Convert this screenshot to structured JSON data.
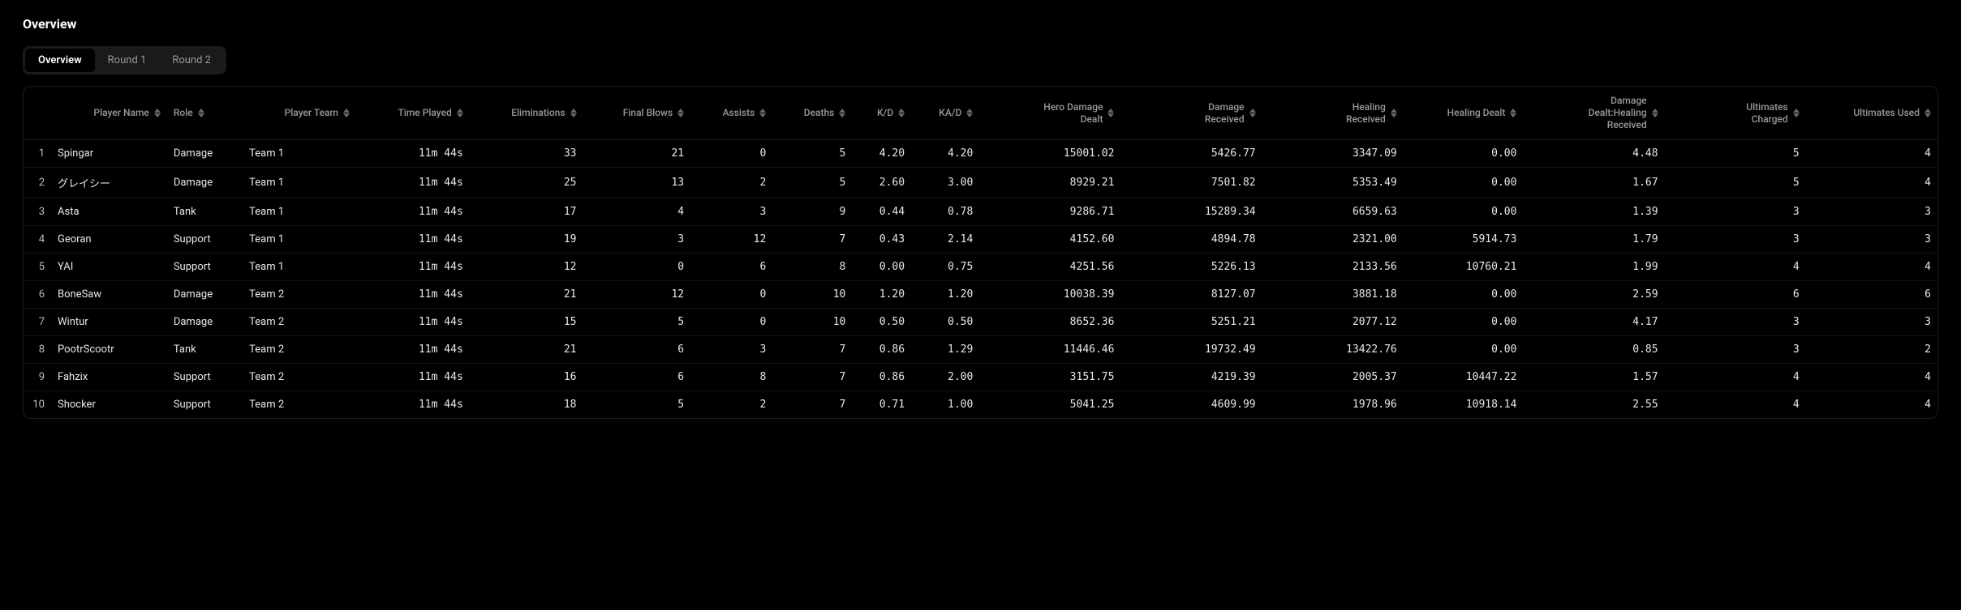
{
  "title": "Overview",
  "tabs": [
    {
      "label": "Overview",
      "active": true
    },
    {
      "label": "Round 1",
      "active": false
    },
    {
      "label": "Round 2",
      "active": false
    }
  ],
  "columns": [
    {
      "key": "idx",
      "label": "",
      "align": "right",
      "mono": false,
      "sortable": false
    },
    {
      "key": "player_name",
      "label": "Player Name",
      "align": "right",
      "mono": false,
      "sortable": true
    },
    {
      "key": "role",
      "label": "Role",
      "align": "left",
      "mono": false,
      "sortable": true
    },
    {
      "key": "player_team",
      "label": "Player Team",
      "align": "right",
      "mono": false,
      "sortable": true
    },
    {
      "key": "time_played",
      "label": "Time Played",
      "align": "right",
      "mono": true,
      "sortable": true
    },
    {
      "key": "eliminations",
      "label": "Eliminations",
      "align": "right",
      "mono": true,
      "sortable": true
    },
    {
      "key": "final_blows",
      "label": "Final Blows",
      "align": "right",
      "mono": true,
      "sortable": true
    },
    {
      "key": "assists",
      "label": "Assists",
      "align": "right",
      "mono": true,
      "sortable": true
    },
    {
      "key": "deaths",
      "label": "Deaths",
      "align": "right",
      "mono": true,
      "sortable": true
    },
    {
      "key": "kd",
      "label": "K/D",
      "align": "right",
      "mono": true,
      "sortable": true
    },
    {
      "key": "kad",
      "label": "KA/D",
      "align": "right",
      "mono": true,
      "sortable": true
    },
    {
      "key": "hero_damage",
      "label": "Hero Damage Dealt",
      "align": "right",
      "mono": true,
      "sortable": true
    },
    {
      "key": "damage_received",
      "label": "Damage Received",
      "align": "right",
      "mono": true,
      "sortable": true
    },
    {
      "key": "healing_received",
      "label": "Healing Received",
      "align": "right",
      "mono": true,
      "sortable": true
    },
    {
      "key": "healing_dealt",
      "label": "Healing Dealt",
      "align": "right",
      "mono": true,
      "sortable": true
    },
    {
      "key": "dd_hr",
      "label": "Damage Dealt:Healing Received",
      "align": "right",
      "mono": true,
      "sortable": true
    },
    {
      "key": "ult_charged",
      "label": "Ultimates Charged",
      "align": "right",
      "mono": true,
      "sortable": true
    },
    {
      "key": "ult_used",
      "label": "Ultimates Used",
      "align": "right",
      "mono": true,
      "sortable": true
    }
  ],
  "rows": [
    {
      "idx": "1",
      "player_name": "Spingar",
      "role": "Damage",
      "player_team": "Team 1",
      "time_played": "11m 44s",
      "eliminations": "33",
      "final_blows": "21",
      "assists": "0",
      "deaths": "5",
      "kd": "4.20",
      "kad": "4.20",
      "hero_damage": "15001.02",
      "damage_received": "5426.77",
      "healing_received": "3347.09",
      "healing_dealt": "0.00",
      "dd_hr": "4.48",
      "ult_charged": "5",
      "ult_used": "4"
    },
    {
      "idx": "2",
      "player_name": "グレイシー",
      "role": "Damage",
      "player_team": "Team 1",
      "time_played": "11m 44s",
      "eliminations": "25",
      "final_blows": "13",
      "assists": "2",
      "deaths": "5",
      "kd": "2.60",
      "kad": "3.00",
      "hero_damage": "8929.21",
      "damage_received": "7501.82",
      "healing_received": "5353.49",
      "healing_dealt": "0.00",
      "dd_hr": "1.67",
      "ult_charged": "5",
      "ult_used": "4"
    },
    {
      "idx": "3",
      "player_name": "Asta",
      "role": "Tank",
      "player_team": "Team 1",
      "time_played": "11m 44s",
      "eliminations": "17",
      "final_blows": "4",
      "assists": "3",
      "deaths": "9",
      "kd": "0.44",
      "kad": "0.78",
      "hero_damage": "9286.71",
      "damage_received": "15289.34",
      "healing_received": "6659.63",
      "healing_dealt": "0.00",
      "dd_hr": "1.39",
      "ult_charged": "3",
      "ult_used": "3"
    },
    {
      "idx": "4",
      "player_name": "Georan",
      "role": "Support",
      "player_team": "Team 1",
      "time_played": "11m 44s",
      "eliminations": "19",
      "final_blows": "3",
      "assists": "12",
      "deaths": "7",
      "kd": "0.43",
      "kad": "2.14",
      "hero_damage": "4152.60",
      "damage_received": "4894.78",
      "healing_received": "2321.00",
      "healing_dealt": "5914.73",
      "dd_hr": "1.79",
      "ult_charged": "3",
      "ult_used": "3"
    },
    {
      "idx": "5",
      "player_name": "YAI",
      "role": "Support",
      "player_team": "Team 1",
      "time_played": "11m 44s",
      "eliminations": "12",
      "final_blows": "0",
      "assists": "6",
      "deaths": "8",
      "kd": "0.00",
      "kad": "0.75",
      "hero_damage": "4251.56",
      "damage_received": "5226.13",
      "healing_received": "2133.56",
      "healing_dealt": "10760.21",
      "dd_hr": "1.99",
      "ult_charged": "4",
      "ult_used": "4"
    },
    {
      "idx": "6",
      "player_name": "BoneSaw",
      "role": "Damage",
      "player_team": "Team 2",
      "time_played": "11m 44s",
      "eliminations": "21",
      "final_blows": "12",
      "assists": "0",
      "deaths": "10",
      "kd": "1.20",
      "kad": "1.20",
      "hero_damage": "10038.39",
      "damage_received": "8127.07",
      "healing_received": "3881.18",
      "healing_dealt": "0.00",
      "dd_hr": "2.59",
      "ult_charged": "6",
      "ult_used": "6"
    },
    {
      "idx": "7",
      "player_name": "Wintur",
      "role": "Damage",
      "player_team": "Team 2",
      "time_played": "11m 44s",
      "eliminations": "15",
      "final_blows": "5",
      "assists": "0",
      "deaths": "10",
      "kd": "0.50",
      "kad": "0.50",
      "hero_damage": "8652.36",
      "damage_received": "5251.21",
      "healing_received": "2077.12",
      "healing_dealt": "0.00",
      "dd_hr": "4.17",
      "ult_charged": "3",
      "ult_used": "3"
    },
    {
      "idx": "8",
      "player_name": "PootrScootr",
      "role": "Tank",
      "player_team": "Team 2",
      "time_played": "11m 44s",
      "eliminations": "21",
      "final_blows": "6",
      "assists": "3",
      "deaths": "7",
      "kd": "0.86",
      "kad": "1.29",
      "hero_damage": "11446.46",
      "damage_received": "19732.49",
      "healing_received": "13422.76",
      "healing_dealt": "0.00",
      "dd_hr": "0.85",
      "ult_charged": "3",
      "ult_used": "2"
    },
    {
      "idx": "9",
      "player_name": "Fahzix",
      "role": "Support",
      "player_team": "Team 2",
      "time_played": "11m 44s",
      "eliminations": "16",
      "final_blows": "6",
      "assists": "8",
      "deaths": "7",
      "kd": "0.86",
      "kad": "2.00",
      "hero_damage": "3151.75",
      "damage_received": "4219.39",
      "healing_received": "2005.37",
      "healing_dealt": "10447.22",
      "dd_hr": "1.57",
      "ult_charged": "4",
      "ult_used": "4"
    },
    {
      "idx": "10",
      "player_name": "Shocker",
      "role": "Support",
      "player_team": "Team 2",
      "time_played": "11m 44s",
      "eliminations": "18",
      "final_blows": "5",
      "assists": "2",
      "deaths": "7",
      "kd": "0.71",
      "kad": "1.00",
      "hero_damage": "5041.25",
      "damage_received": "4609.99",
      "healing_received": "1978.96",
      "healing_dealt": "10918.14",
      "dd_hr": "2.55",
      "ult_charged": "4",
      "ult_used": "4"
    }
  ],
  "colors": {
    "background": "#000000",
    "panel_border": "#1e1e1e",
    "row_border": "#141414",
    "text": "#e8e8e8",
    "text_muted": "#9a9a9a",
    "tab_bg": "#1a1a1a",
    "tab_active_bg": "#000000",
    "tab_active_text": "#ffffff",
    "tab_inactive_text": "#999999"
  }
}
